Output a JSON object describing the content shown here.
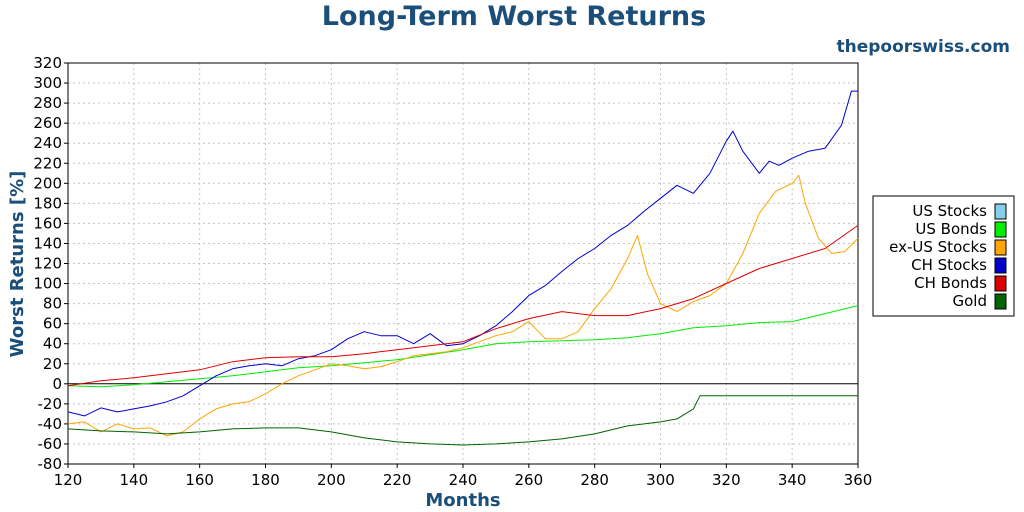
{
  "chart_data": {
    "type": "line",
    "title": "Long-Term Worst Returns",
    "source_label": "thepoorswiss.com",
    "xlabel": "Months",
    "ylabel": "Worst Returns [%]",
    "xlim": [
      120,
      360
    ],
    "ylim": [
      -80,
      320
    ],
    "x_ticks": [
      120,
      140,
      160,
      180,
      200,
      220,
      240,
      260,
      280,
      300,
      320,
      340,
      360
    ],
    "y_ticks": [
      -80,
      -60,
      -40,
      -20,
      0,
      20,
      40,
      60,
      80,
      100,
      120,
      140,
      160,
      180,
      200,
      220,
      240,
      260,
      280,
      300,
      320
    ],
    "grid": true,
    "legend_position": "right",
    "series": [
      {
        "name": "US Stocks",
        "color": "#87ceeb",
        "x": [],
        "y": []
      },
      {
        "name": "US Bonds",
        "color": "#00ee00",
        "x": [
          120,
          130,
          140,
          150,
          160,
          170,
          180,
          190,
          200,
          210,
          220,
          230,
          240,
          250,
          260,
          270,
          280,
          290,
          300,
          310,
          320,
          330,
          340,
          350,
          360
        ],
        "y": [
          -2,
          -3,
          -1,
          2,
          5,
          8,
          12,
          16,
          18,
          21,
          24,
          29,
          34,
          40,
          42,
          43,
          44,
          46,
          50,
          56,
          58,
          61,
          62,
          70,
          78
        ]
      },
      {
        "name": "ex-US Stocks",
        "color": "#ffa500",
        "x": [
          120,
          125,
          130,
          135,
          140,
          145,
          150,
          155,
          160,
          165,
          170,
          175,
          180,
          185,
          190,
          195,
          200,
          205,
          210,
          215,
          220,
          225,
          230,
          235,
          240,
          245,
          250,
          255,
          260,
          265,
          270,
          275,
          280,
          285,
          290,
          293,
          296,
          300,
          305,
          310,
          315,
          320,
          325,
          330,
          335,
          340,
          342,
          344,
          348,
          352,
          356,
          360
        ],
        "y": [
          -40,
          -38,
          -48,
          -40,
          -45,
          -44,
          -52,
          -48,
          -35,
          -25,
          -20,
          -18,
          -10,
          0,
          8,
          14,
          20,
          18,
          15,
          17,
          22,
          28,
          30,
          32,
          36,
          42,
          48,
          52,
          62,
          45,
          45,
          52,
          75,
          95,
          125,
          148,
          110,
          80,
          72,
          82,
          88,
          100,
          130,
          170,
          192,
          200,
          208,
          180,
          145,
          130,
          132,
          145
        ]
      },
      {
        "name": "CH Stocks",
        "color": "#0000cd",
        "x": [
          120,
          125,
          130,
          135,
          140,
          145,
          150,
          155,
          160,
          165,
          170,
          175,
          180,
          185,
          190,
          195,
          200,
          205,
          210,
          215,
          220,
          225,
          230,
          235,
          240,
          245,
          250,
          255,
          260,
          265,
          270,
          275,
          280,
          285,
          290,
          295,
          300,
          305,
          310,
          315,
          320,
          322,
          325,
          330,
          333,
          336,
          340,
          345,
          350,
          355,
          358,
          360
        ],
        "y": [
          -28,
          -32,
          -24,
          -28,
          -25,
          -22,
          -18,
          -12,
          -2,
          8,
          15,
          18,
          20,
          18,
          25,
          28,
          34,
          45,
          52,
          48,
          48,
          40,
          50,
          38,
          40,
          48,
          58,
          72,
          88,
          98,
          112,
          125,
          135,
          148,
          158,
          172,
          185,
          198,
          190,
          210,
          242,
          252,
          232,
          210,
          222,
          218,
          225,
          232,
          235,
          258,
          292,
          292
        ]
      },
      {
        "name": "CH Bonds",
        "color": "#dd0000",
        "x": [
          120,
          130,
          140,
          150,
          160,
          170,
          180,
          190,
          200,
          210,
          220,
          230,
          240,
          250,
          260,
          270,
          280,
          290,
          300,
          310,
          320,
          330,
          340,
          350,
          360
        ],
        "y": [
          -2,
          3,
          6,
          10,
          14,
          22,
          26,
          27,
          27,
          30,
          34,
          38,
          42,
          55,
          65,
          72,
          68,
          68,
          75,
          85,
          100,
          115,
          125,
          135,
          158
        ]
      },
      {
        "name": "Gold",
        "color": "#006400",
        "x": [
          120,
          130,
          140,
          150,
          160,
          170,
          180,
          190,
          200,
          210,
          220,
          230,
          240,
          250,
          260,
          270,
          280,
          290,
          300,
          305,
          310,
          312,
          314,
          320,
          330,
          340,
          350,
          360
        ],
        "y": [
          -45,
          -47,
          -48,
          -50,
          -48,
          -45,
          -44,
          -44,
          -48,
          -54,
          -58,
          -60,
          -61,
          -60,
          -58,
          -55,
          -50,
          -42,
          -38,
          -35,
          -25,
          -12,
          -12,
          -12,
          -12,
          -12,
          -12,
          -12
        ]
      }
    ]
  }
}
